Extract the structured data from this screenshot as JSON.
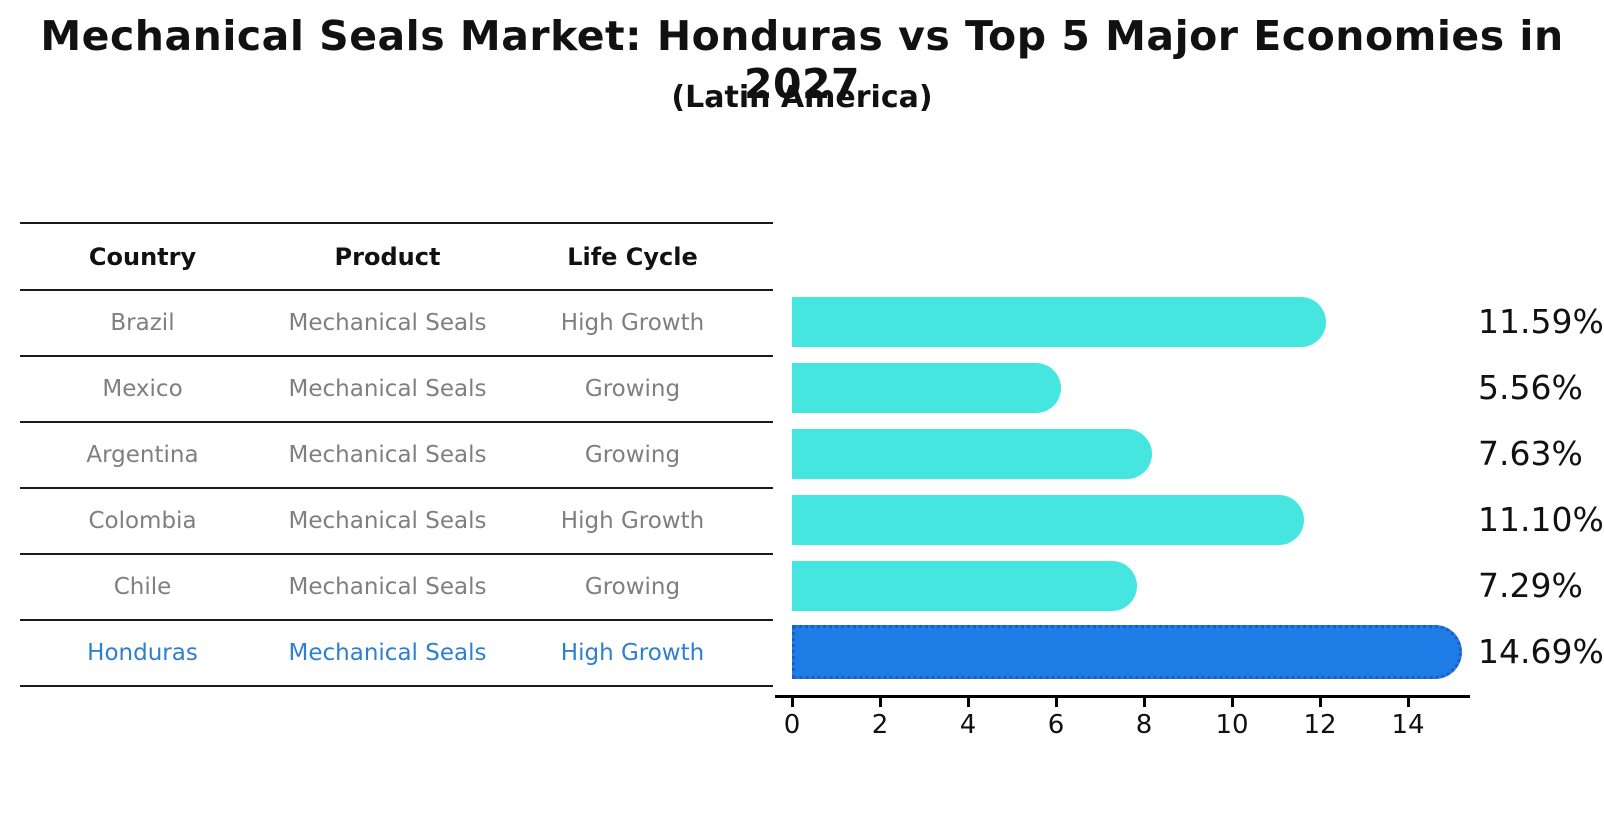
{
  "title": "Mechanical Seals Market: Honduras vs Top 5 Major Economies in 2027",
  "subtitle": "(Latin America)",
  "table": {
    "headers": {
      "country": "Country",
      "product": "Product",
      "life_cycle": "Life Cycle"
    },
    "rows": [
      {
        "country": "Brazil",
        "product": "Mechanical Seals",
        "life_cycle": "High Growth",
        "highlight": false
      },
      {
        "country": "Mexico",
        "product": "Mechanical Seals",
        "life_cycle": "Growing",
        "highlight": false
      },
      {
        "country": "Argentina",
        "product": "Mechanical Seals",
        "life_cycle": "Growing",
        "highlight": false
      },
      {
        "country": "Colombia",
        "product": "Mechanical Seals",
        "life_cycle": "High Growth",
        "highlight": false
      },
      {
        "country": "Chile",
        "product": "Mechanical Seals",
        "life_cycle": "Growing",
        "highlight": false
      },
      {
        "country": "Honduras",
        "product": "Mechanical Seals",
        "life_cycle": "High Growth",
        "highlight": true
      }
    ]
  },
  "chart_data": {
    "type": "bar",
    "orientation": "horizontal",
    "categories": [
      "Brazil",
      "Mexico",
      "Argentina",
      "Colombia",
      "Chile",
      "Honduras"
    ],
    "values": [
      11.59,
      5.56,
      7.63,
      11.1,
      7.29,
      14.69
    ],
    "value_labels": [
      "11.59%",
      "5.56%",
      "7.63%",
      "11.10%",
      "7.29%",
      "14.69%"
    ],
    "xticks": [
      0,
      2,
      4,
      6,
      8,
      10,
      12,
      14
    ],
    "xlim": [
      0,
      15.4
    ],
    "grid": false,
    "legend": false,
    "highlight_category": "Honduras",
    "colors": {
      "bar": "#45e6e0",
      "highlight_bar": "#1e7ce6",
      "highlight_border": "#1b5fc0",
      "highlight_text": "#2d7fd3",
      "row_text": "#7f7f7f",
      "axis": "#000000"
    }
  }
}
